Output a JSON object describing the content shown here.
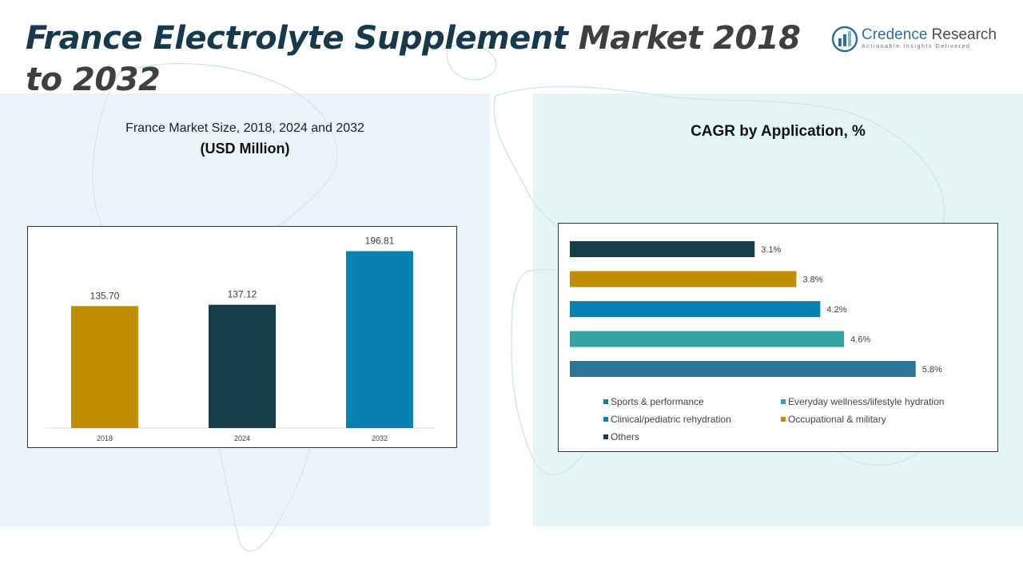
{
  "header": {
    "title_part1": "France Electrolyte Supplement",
    "title_part2": "Market 2018 to 2032"
  },
  "logo": {
    "name_part1": "Credence",
    "name_part2": "Research",
    "tagline": "Actionable Insights Delivered",
    "icon": "credence-bars-icon"
  },
  "colors": {
    "title_dark": "#17394b",
    "title_grey": "#3f3f3f",
    "gold": "#bf8f00",
    "navy": "#173d4d",
    "blue": "#0a7fb2",
    "teal": "#36a3a3",
    "steel": "#2b7696"
  },
  "chart_data": [
    {
      "type": "bar",
      "title": "France Market Size, 2018, 2024 and 2032",
      "subtitle": "(USD Million)",
      "categories": [
        "2018",
        "2024",
        "2032"
      ],
      "values": [
        135.7,
        137.12,
        196.81
      ],
      "value_labels": [
        "135.70",
        "137.12",
        "196.81"
      ],
      "colors": [
        "#bf8f00",
        "#173d4d",
        "#0a7fb2"
      ],
      "ylim": [
        0,
        215
      ],
      "grid": false,
      "legend": "none"
    },
    {
      "type": "bar",
      "orientation": "horizontal",
      "title": "CAGR by Application, %",
      "categories": [
        "Others",
        "Occupational & military",
        "Clinical/pediatric rehydration",
        "Everyday wellness/lifestyle hydration",
        "Sports & performance"
      ],
      "values": [
        3.1,
        3.8,
        4.2,
        4.6,
        5.8
      ],
      "value_labels": [
        "3.1%",
        "3.8%",
        "4.2%",
        "4.6%",
        "5.8%"
      ],
      "colors": [
        "#173d4d",
        "#bf8f00",
        "#0a7fb2",
        "#36a3a3",
        "#2b7696"
      ],
      "xlim": [
        0,
        6.3
      ],
      "grid": false,
      "legend": "bottom",
      "legend_entries": [
        {
          "label": "Sports & performance",
          "color": "#2b7696"
        },
        {
          "label": "Everyday wellness/lifestyle hydration",
          "color": "#36a3a3"
        },
        {
          "label": "Clinical/pediatric rehydration",
          "color": "#0a7fb2"
        },
        {
          "label": "Occupational & military",
          "color": "#bf8f00"
        },
        {
          "label": "Others",
          "color": "#173d4d"
        }
      ]
    }
  ]
}
